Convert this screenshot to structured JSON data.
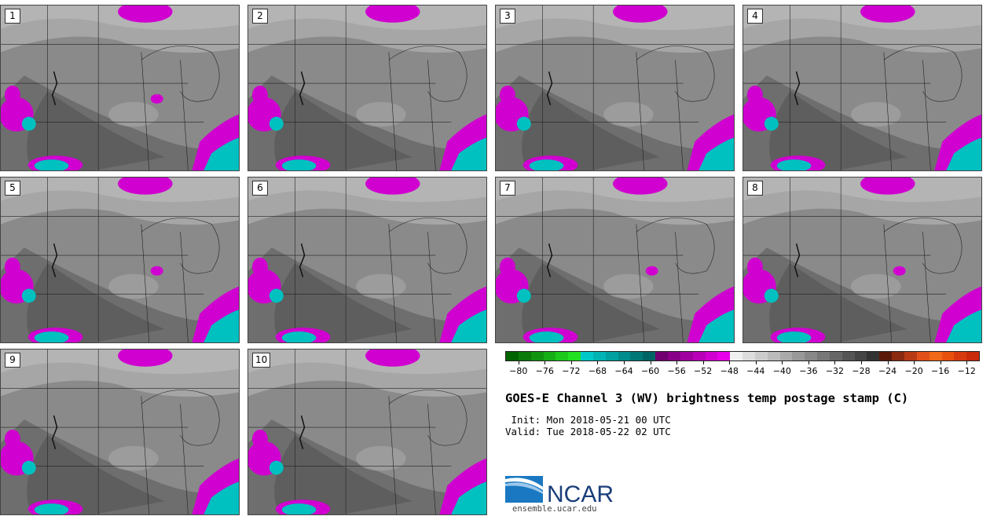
{
  "panels": [
    {
      "label": "1"
    },
    {
      "label": "2"
    },
    {
      "label": "3"
    },
    {
      "label": "4"
    },
    {
      "label": "5"
    },
    {
      "label": "6"
    },
    {
      "label": "7"
    },
    {
      "label": "8"
    },
    {
      "label": "9"
    },
    {
      "label": "10"
    }
  ],
  "colorbar": {
    "colors": [
      "#006400",
      "#0a7a0a",
      "#109410",
      "#16ae16",
      "#1cc81c",
      "#22e022",
      "#00c8c8",
      "#00b4b4",
      "#00a0a0",
      "#008c8c",
      "#007878",
      "#006464",
      "#700070",
      "#880088",
      "#a000a0",
      "#b800b8",
      "#d000d0",
      "#e800e8",
      "#f0f0f0",
      "#dddddd",
      "#cccccc",
      "#bbbbbb",
      "#aaaaaa",
      "#999999",
      "#888888",
      "#777777",
      "#666666",
      "#555555",
      "#444444",
      "#333333",
      "#5a1a0a",
      "#8a2a10",
      "#b83a14",
      "#e05018",
      "#f06818",
      "#e85010",
      "#d83a10",
      "#c82a0a"
    ],
    "ticks": [
      "−80",
      "−76",
      "−72",
      "−68",
      "−64",
      "−60",
      "−56",
      "−52",
      "−48",
      "−44",
      "−40",
      "−36",
      "−32",
      "−28",
      "−24",
      "−20",
      "−16",
      "−12"
    ],
    "tick_values": [
      -80,
      -76,
      -72,
      -68,
      -64,
      -60,
      -56,
      -52,
      -48,
      -44,
      -40,
      -36,
      -32,
      -28,
      -24,
      -20,
      -16,
      -12
    ],
    "range": [
      -82,
      -10
    ]
  },
  "title": "GOES-E Channel 3 (WV) brightness temp postage stamp (C)",
  "init": " Init: Mon 2018-05-21 00 UTC",
  "valid": "Valid: Tue 2018-05-22 02 UTC",
  "logo_text": "NCAR",
  "url": "ensemble.ucar.edu",
  "colors": {
    "cold_magenta": "#d000d0",
    "cold_cyan": "#00c0c0",
    "gray_mid": "#8c8c8c"
  }
}
